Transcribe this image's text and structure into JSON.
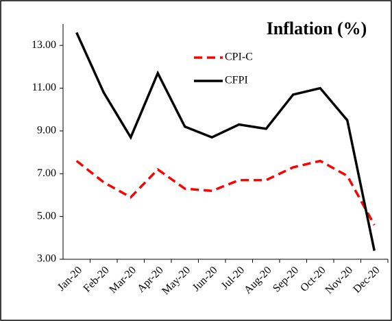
{
  "chart_data": {
    "type": "line",
    "title": "Inflation (%)",
    "categories": [
      "Jan-20",
      "Feb-20",
      "Mar-20",
      "Apr-20",
      "May-20",
      "Jun-20",
      "Jul-20",
      "Aug-20",
      "Sep-20",
      "Oct-20",
      "Nov-20",
      "Dec-20"
    ],
    "series": [
      {
        "name": "CPI-C",
        "color": "#ff0000",
        "dash": true,
        "values": [
          7.6,
          6.6,
          5.9,
          7.2,
          6.3,
          6.2,
          6.7,
          6.7,
          7.3,
          7.6,
          6.9,
          4.6
        ]
      },
      {
        "name": "CFPI",
        "color": "#000000",
        "dash": false,
        "values": [
          13.6,
          10.8,
          8.7,
          11.7,
          9.2,
          8.7,
          9.3,
          9.1,
          10.7,
          11.0,
          9.5,
          3.4
        ]
      }
    ],
    "ylim": [
      3,
      14
    ],
    "yticks": [
      {
        "value": 3,
        "label": "3.00"
      },
      {
        "value": 5,
        "label": "5.00"
      },
      {
        "value": 7,
        "label": "7.00"
      },
      {
        "value": 9,
        "label": "9.00"
      },
      {
        "value": 11,
        "label": "11.00"
      },
      {
        "value": 13,
        "label": "13.00"
      }
    ],
    "grid": false
  }
}
